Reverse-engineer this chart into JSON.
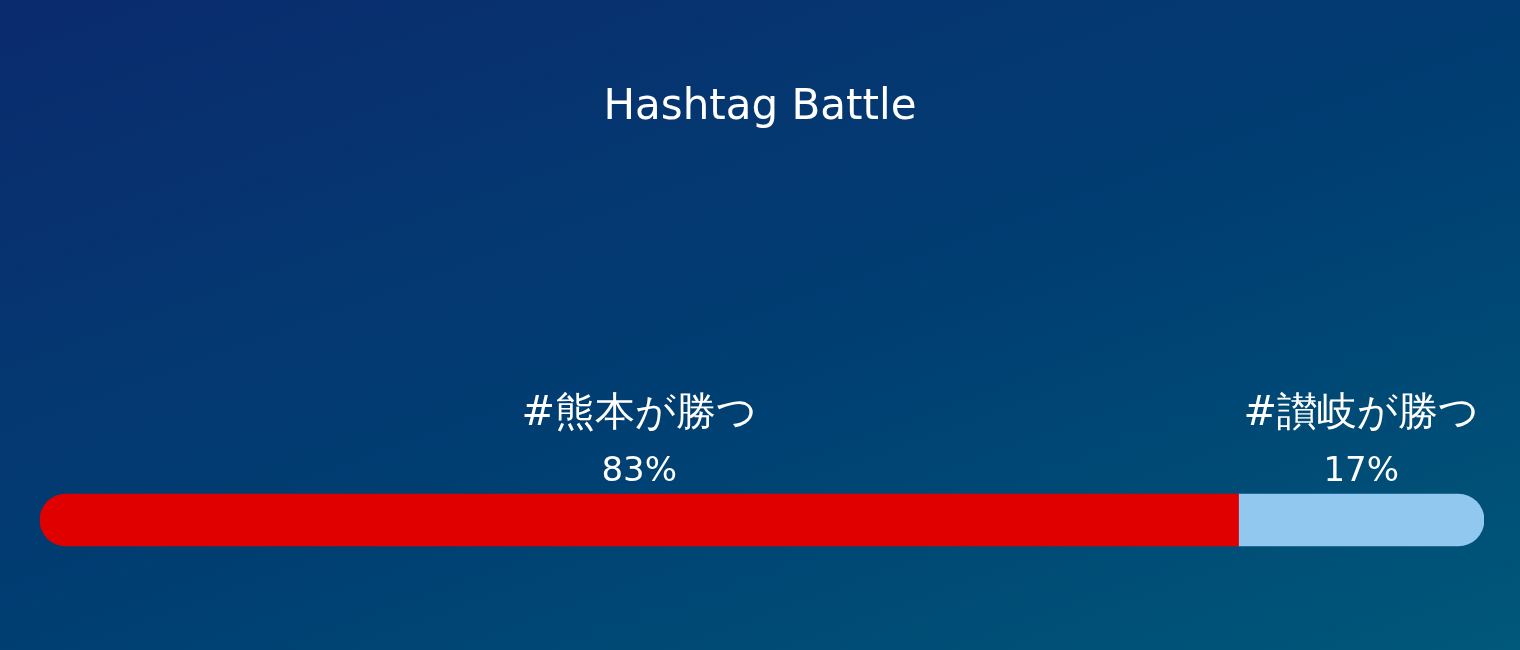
{
  "chart_data": {
    "type": "bar",
    "title": "Hashtag Battle",
    "orientation": "horizontal",
    "stacked": true,
    "categories": [
      null
    ],
    "series": [
      {
        "name": "#熊本が勝つ",
        "color": "#e00000",
        "values": [
          83
        ],
        "value_labels": [
          "83%"
        ]
      },
      {
        "name": "#讃岐が勝つ",
        "color": "#90c8f0",
        "values": [
          17
        ],
        "value_labels": [
          "17%"
        ]
      }
    ]
  }
}
